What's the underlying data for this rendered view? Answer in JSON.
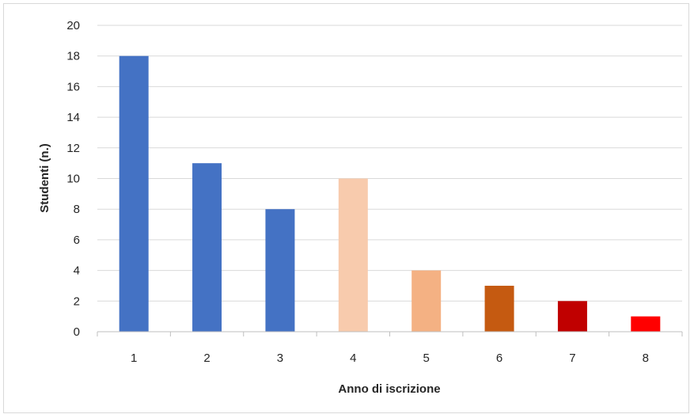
{
  "chart_data": {
    "type": "bar",
    "title": "",
    "xlabel": "Anno di iscrizione",
    "ylabel": "Studenti (n.)",
    "categories": [
      "1",
      "2",
      "3",
      "4",
      "5",
      "6",
      "7",
      "8"
    ],
    "values": [
      18,
      11,
      8,
      10,
      4,
      3,
      2,
      1
    ],
    "bar_colors": [
      "#4472c4",
      "#4472c4",
      "#4472c4",
      "#f8cbad",
      "#f4b183",
      "#c55a11",
      "#c00000",
      "#ff0000"
    ],
    "ylim": [
      0,
      20
    ],
    "yticks": [
      "0",
      "2",
      "4",
      "6",
      "8",
      "10",
      "12",
      "14",
      "16",
      "18",
      "20"
    ],
    "grid": true,
    "legend": "none"
  }
}
